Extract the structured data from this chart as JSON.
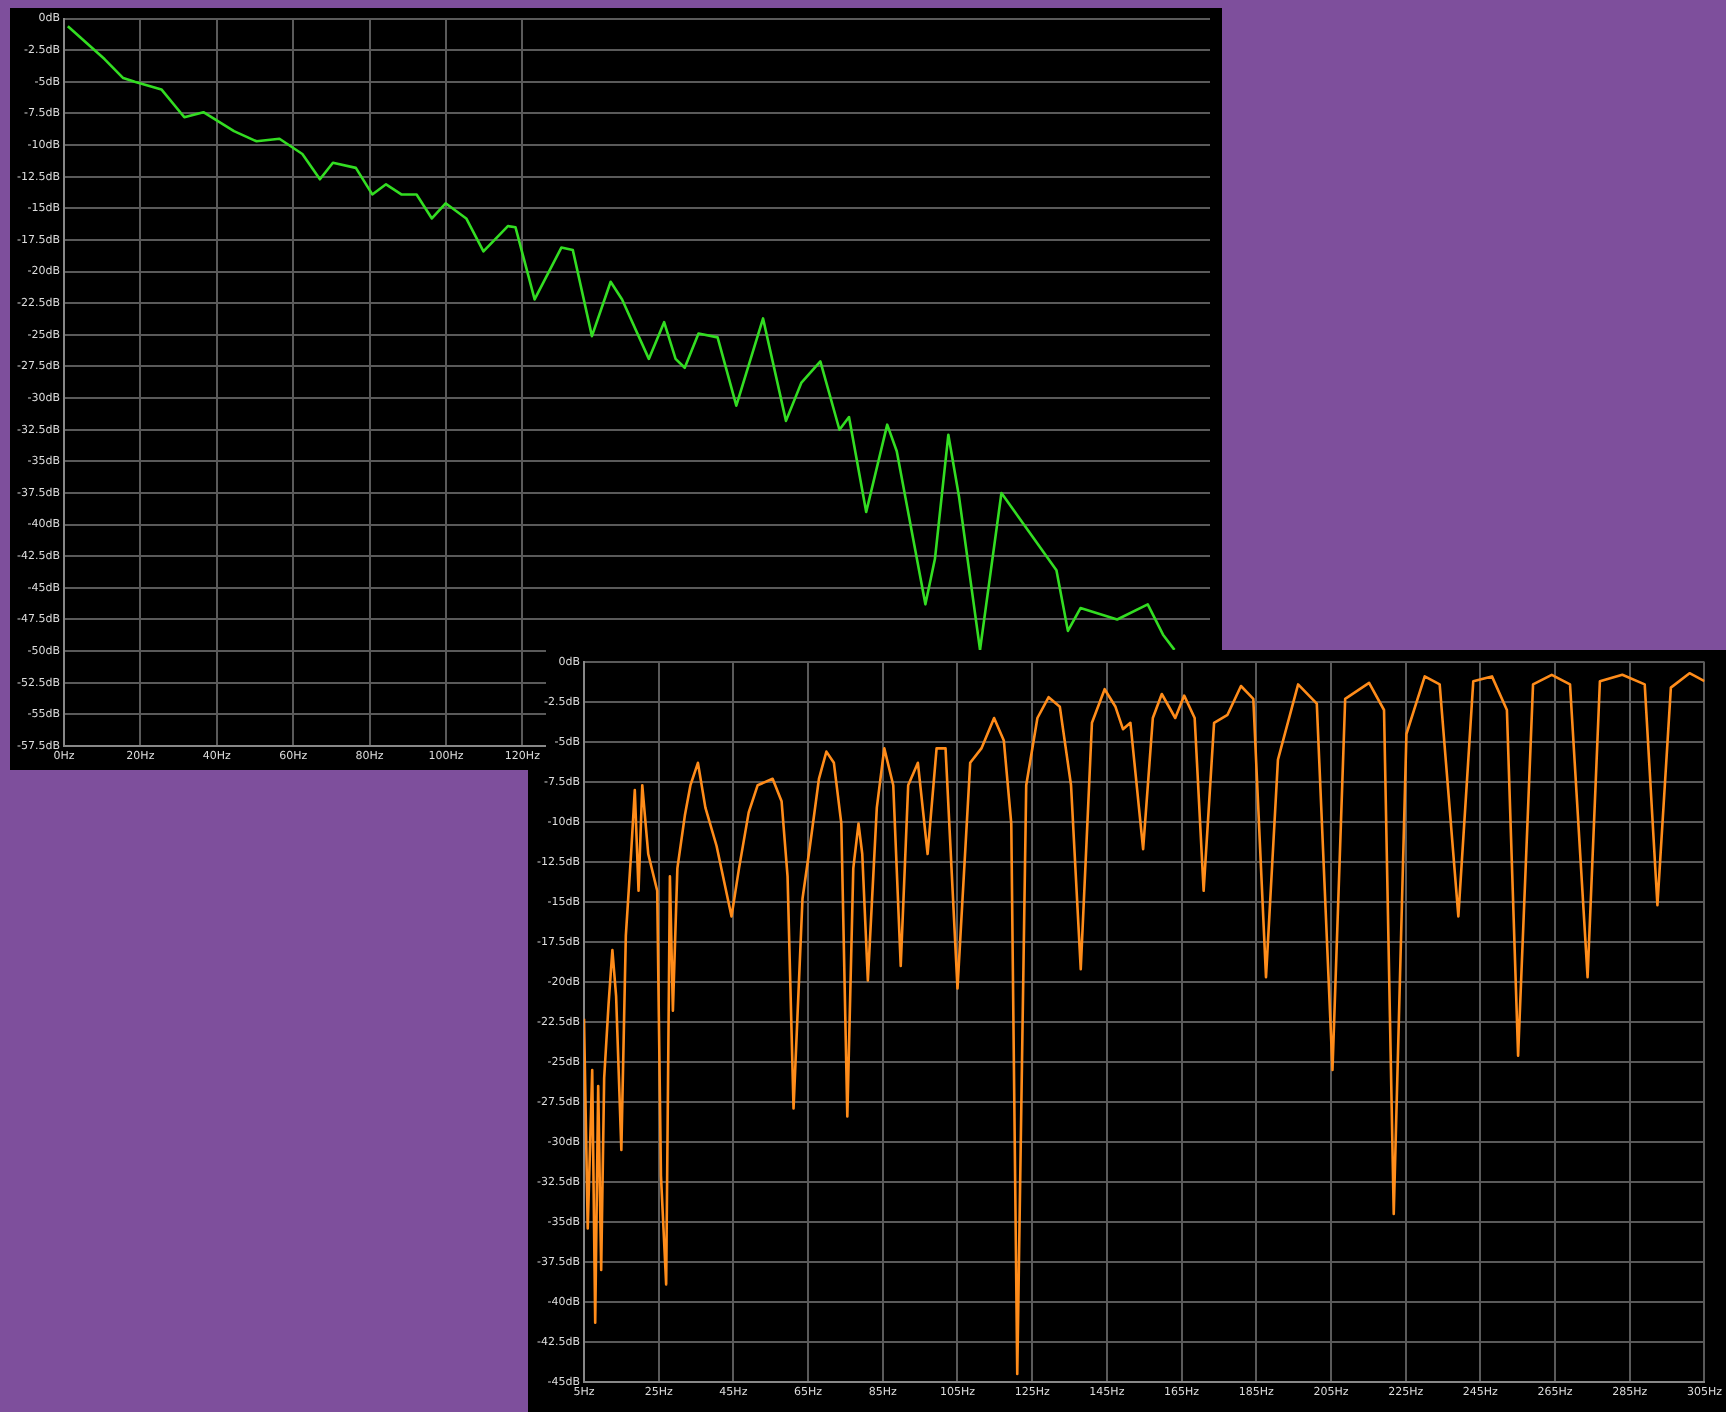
{
  "chart_data": [
    {
      "type": "line",
      "grid": true,
      "xlim": [
        0,
        300
      ],
      "ylim": [
        -57.5,
        0
      ],
      "xticks": [
        {
          "value": 0,
          "label": "0Hz"
        },
        {
          "value": 20,
          "label": "20Hz"
        },
        {
          "value": 40,
          "label": "40Hz"
        },
        {
          "value": 60,
          "label": "60Hz"
        },
        {
          "value": 80,
          "label": "80Hz"
        },
        {
          "value": 100,
          "label": "100Hz"
        },
        {
          "value": 120,
          "label": "120Hz"
        }
      ],
      "yticks": [
        {
          "value": 0,
          "label": "0dB"
        },
        {
          "value": -2.5,
          "label": "-2.5dB"
        },
        {
          "value": -5,
          "label": "-5dB"
        },
        {
          "value": -7.5,
          "label": "-7.5dB"
        },
        {
          "value": -10,
          "label": "-10dB"
        },
        {
          "value": -12.5,
          "label": "-12.5dB"
        },
        {
          "value": -15,
          "label": "-15dB"
        },
        {
          "value": -17.5,
          "label": "-17.5dB"
        },
        {
          "value": -20,
          "label": "-20dB"
        },
        {
          "value": -22.5,
          "label": "-22.5dB"
        },
        {
          "value": -25,
          "label": "-25dB"
        },
        {
          "value": -27.5,
          "label": "-27.5dB"
        },
        {
          "value": -30,
          "label": "-30dB"
        },
        {
          "value": -32.5,
          "label": "-32.5dB"
        },
        {
          "value": -35,
          "label": "-35dB"
        },
        {
          "value": -37.5,
          "label": "-37.5dB"
        },
        {
          "value": -40,
          "label": "-40dB"
        },
        {
          "value": -42.5,
          "label": "-42.5dB"
        },
        {
          "value": -45,
          "label": "-45dB"
        },
        {
          "value": -47.5,
          "label": "-47.5dB"
        },
        {
          "value": -50,
          "label": "-50dB"
        },
        {
          "value": -52.5,
          "label": "-52.5dB"
        },
        {
          "value": -55,
          "label": "-55dB"
        },
        {
          "value": -57.5,
          "label": "-57.5dB"
        }
      ],
      "series": [
        {
          "color": "#33dd22",
          "x": [
            1,
            10.6,
            15.5,
            18.5,
            25.5,
            31.5,
            36.5,
            44.5,
            50.4,
            56.4,
            62.4,
            67,
            70.4,
            76.4,
            80.7,
            84.3,
            88.3,
            92.3,
            96.3,
            99.9,
            105.3,
            109.8,
            116.2,
            118.2,
            123.2,
            130.2,
            133.2,
            138.2,
            143.1,
            146.1,
            153.1,
            157.1,
            160.1,
            162.5,
            166.1,
            171.1,
            176,
            183,
            189,
            193,
            198,
            203,
            205.5,
            210,
            215.5,
            218,
            225.5,
            228,
            231.5,
            234.3,
            239.8,
            245.4,
            252.2,
            259.8,
            262.8,
            266.1,
            268.7,
            273.7,
            275.7,
            277.7,
            283.7,
            287.7,
            290.7
          ],
          "values": [
            -0.6,
            -3.2,
            -4.7,
            -5,
            -5.6,
            -7.8,
            -7.4,
            -8.9,
            -9.7,
            -9.5,
            -10.7,
            -12.7,
            -11.4,
            -11.8,
            -13.9,
            -13.1,
            -13.9,
            -13.9,
            -15.8,
            -14.6,
            -15.8,
            -18.4,
            -16.4,
            -16.5,
            -22.2,
            -18.1,
            -18.3,
            -25.1,
            -20.8,
            -22.2,
            -26.9,
            -24,
            -26.9,
            -27.6,
            -24.9,
            -25.2,
            -30.6,
            -23.7,
            -31.8,
            -28.8,
            -27.1,
            -32.5,
            -31.5,
            -39,
            -32.1,
            -34.2,
            -46.3,
            -42.7,
            -32.9,
            -37.8,
            -49.9,
            -37.5,
            null,
            -43.6,
            -48.4,
            -46.6,
            null,
            null,
            -47.5,
            null,
            -46.3,
            -48.7,
            -49.9
          ]
        }
      ]
    },
    {
      "type": "line",
      "grid": true,
      "xlim": [
        5,
        305
      ],
      "ylim": [
        -45,
        0
      ],
      "xticks": [
        {
          "value": 5,
          "label": "5Hz"
        },
        {
          "value": 25,
          "label": "25Hz"
        },
        {
          "value": 45,
          "label": "45Hz"
        },
        {
          "value": 65,
          "label": "65Hz"
        },
        {
          "value": 85,
          "label": "85Hz"
        },
        {
          "value": 105,
          "label": "105Hz"
        },
        {
          "value": 125,
          "label": "125Hz"
        },
        {
          "value": 145,
          "label": "145Hz"
        },
        {
          "value": 165,
          "label": "165Hz"
        },
        {
          "value": 185,
          "label": "185Hz"
        },
        {
          "value": 205,
          "label": "205Hz"
        },
        {
          "value": 225,
          "label": "225Hz"
        },
        {
          "value": 245,
          "label": "245Hz"
        },
        {
          "value": 265,
          "label": "265Hz"
        },
        {
          "value": 285,
          "label": "285Hz"
        },
        {
          "value": 305,
          "label": "305Hz"
        }
      ],
      "yticks": [
        {
          "value": 0,
          "label": "0dB"
        },
        {
          "value": -2.5,
          "label": "-2.5dB"
        },
        {
          "value": -5,
          "label": "-5dB"
        },
        {
          "value": -7.5,
          "label": "-7.5dB"
        },
        {
          "value": -10,
          "label": "-10dB"
        },
        {
          "value": -12.5,
          "label": "-12.5dB"
        },
        {
          "value": -15,
          "label": "-15dB"
        },
        {
          "value": -17.5,
          "label": "-17.5dB"
        },
        {
          "value": -20,
          "label": "-20dB"
        },
        {
          "value": -22.5,
          "label": "-22.5dB"
        },
        {
          "value": -25,
          "label": "-25dB"
        },
        {
          "value": -27.5,
          "label": "-27.5dB"
        },
        {
          "value": -30,
          "label": "-30dB"
        },
        {
          "value": -32.5,
          "label": "-32.5dB"
        },
        {
          "value": -35,
          "label": "-35dB"
        },
        {
          "value": -37.5,
          "label": "-37.5dB"
        },
        {
          "value": -40,
          "label": "-40dB"
        },
        {
          "value": -42.5,
          "label": "-42.5dB"
        },
        {
          "value": -45,
          "label": "-45dB"
        }
      ],
      "series": [
        {
          "color": "#ff8c1a",
          "x": [
            5,
            6,
            7.2,
            8,
            8.8,
            9.6,
            10.4,
            11.6,
            12.6,
            13.6,
            15,
            16.2,
            17.6,
            18.6,
            19.6,
            20.6,
            22.2,
            24.6,
            25.6,
            27,
            28,
            28.8,
            30,
            32,
            33.5,
            35.5,
            37.5,
            40.5,
            44.5,
            46.5,
            49.1,
            51.5,
            55.5,
            57.9,
            59.5,
            61.1,
            63.5,
            65.5,
            67.9,
            69.9,
            71.9,
            73.9,
            75.5,
            77.1,
            78.5,
            79.5,
            81,
            83.4,
            85.4,
            87.8,
            89.8,
            91.8,
            94.4,
            97,
            99.4,
            101.8,
            105,
            108.4,
            111.4,
            114.8,
            117.4,
            119.4,
            121,
            123.4,
            126.4,
            129.4,
            132.4,
            135.4,
            138,
            141,
            144.4,
            147.3,
            149.3,
            151.3,
            154.7,
            157.3,
            159.7,
            163.3,
            165.7,
            168.5,
            170.9,
            173.7,
            177.3,
            180.9,
            184.2,
            187.6,
            190.8,
            196.2,
            201.2,
            205.4,
            208.8,
            215.2,
            219.2,
            221.8,
            225.2,
            230.1,
            234.1,
            239.1,
            243.1,
            248.1,
            252.1,
            255.1,
            259.1,
            264.1,
            269,
            273.7,
            277,
            283,
            289,
            292.4,
            296,
            301,
            305
          ],
          "values": [
            -22.3,
            -35.4,
            -25.5,
            -41.3,
            -26.5,
            -38,
            -26,
            -21.3,
            -18,
            -20.9,
            -30.5,
            -17.1,
            -12,
            -8,
            -14.3,
            -7.7,
            -12,
            -14.3,
            -32.1,
            -38.9,
            -13.4,
            -21.8,
            -12.9,
            -9.6,
            -7.7,
            -6.3,
            -9.1,
            -11.5,
            -15.9,
            -12.9,
            -9.4,
            -7.7,
            -7.3,
            -8.7,
            -13.4,
            -27.9,
            -14.8,
            -11.5,
            -7.3,
            -5.6,
            -6.3,
            -10.1,
            -28.4,
            -12.9,
            -10.1,
            -12,
            -19.9,
            -9.1,
            -5.4,
            -7.7,
            -19,
            -7.7,
            -6.3,
            -12,
            -5.4,
            -5.4,
            -20.4,
            -6.3,
            -5.4,
            -3.5,
            -4.9,
            -10.1,
            -44.5,
            -7.7,
            -3.5,
            -2.2,
            -2.8,
            -7.7,
            -19.2,
            -3.8,
            -1.7,
            -2.8,
            -4.2,
            -3.8,
            -11.7,
            -3.5,
            -2,
            -3.5,
            -2.1,
            -3.5,
            -14.3,
            -3.8,
            -3.3,
            -1.5,
            -2.3,
            -19.7,
            -6.1,
            -1.4,
            -2.6,
            -25.5,
            -2.3,
            -1.3,
            -3,
            -34.5,
            -4.5,
            -0.9,
            -1.4,
            -15.9,
            -1.2,
            -0.9,
            -3,
            -24.6,
            -1.4,
            -0.8,
            -1.4,
            -19.7,
            -1.2,
            -0.8,
            -1.4,
            -15.2,
            -1.6,
            -0.7,
            -1.2
          ]
        }
      ]
    }
  ]
}
